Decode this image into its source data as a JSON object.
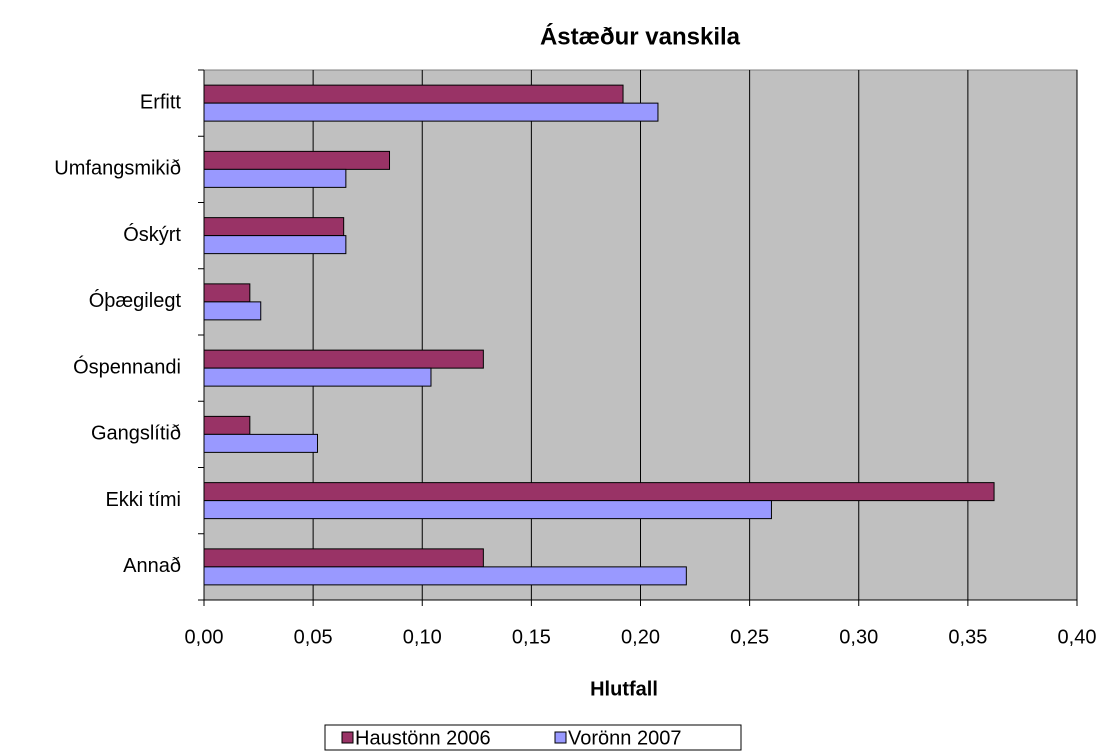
{
  "chart_data": {
    "type": "hbar",
    "title": "Ástæður vanskila",
    "x_label": "Hlutfall",
    "categories": [
      "Erfitt",
      "Umfangsmikið",
      "Óskýrt",
      "Óþægilegt",
      "Óspennandi",
      "Gangslítið",
      "Ekki tími",
      "Annað"
    ],
    "series": [
      {
        "name": "Haustönn 2006",
        "color": "#993366",
        "values": [
          0.192,
          0.085,
          0.064,
          0.021,
          0.128,
          0.021,
          0.362,
          0.128
        ]
      },
      {
        "name": "Vorönn 2007",
        "color": "#9999ff",
        "values": [
          0.208,
          0.065,
          0.065,
          0.026,
          0.104,
          0.052,
          0.26,
          0.221
        ]
      }
    ],
    "xlim": [
      0,
      0.4
    ],
    "xticks": [
      {
        "value": 0,
        "label": "0,00"
      },
      {
        "value": 0.05,
        "label": "0,05"
      },
      {
        "value": 0.1,
        "label": "0,10"
      },
      {
        "value": 0.15,
        "label": "0,15"
      },
      {
        "value": 0.2,
        "label": "0,20"
      },
      {
        "value": 0.25,
        "label": "0,25"
      },
      {
        "value": 0.3,
        "label": "0,30"
      },
      {
        "value": 0.35,
        "label": "0,35"
      },
      {
        "value": 0.4,
        "label": "0,40"
      }
    ],
    "grid": true,
    "legend": "bottom"
  }
}
